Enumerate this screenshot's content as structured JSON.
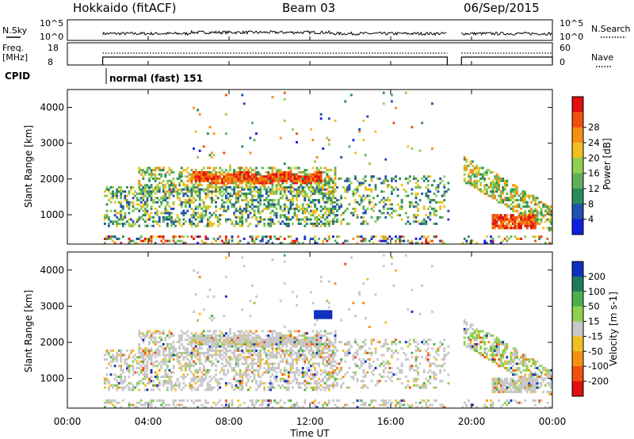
{
  "header": {
    "radar": "Hokkaido (fitACF)",
    "beam": "Beam 03",
    "date": "06/Sep/2015"
  },
  "status_panel": {
    "nsky_label": "N.Sky",
    "nsky_ticks": [
      "10^5",
      "10^0"
    ],
    "nsearch_label": "N.Search",
    "nsearch_ticks": [
      "10^5",
      "10^0"
    ],
    "freq_label": "Freq.",
    "freq_unit": "[MHz]",
    "freq_ticks": [
      "18",
      "8"
    ],
    "nave_label": "Nave",
    "nave_ticks": [
      "60",
      "0"
    ],
    "cpid_label": "CPID",
    "cpid_text": "normal (fast) 151"
  },
  "chart_data": [
    {
      "type": "heatmap",
      "name": "power",
      "ylabel": "Slant Range [km]",
      "yticks": [
        "1000",
        "2000",
        "3000",
        "4000"
      ],
      "ylim": [
        180,
        4500
      ],
      "xlim_hours": [
        0,
        24
      ],
      "colorbar": {
        "label": "Power [dB]",
        "ticks": [
          "4",
          "8",
          "12",
          "16",
          "20",
          "24",
          "28"
        ],
        "colors": [
          "#1020e0",
          "#2050b0",
          "#2a8a5a",
          "#5fae5a",
          "#90d050",
          "#f0c020",
          "#f59010",
          "#f05010",
          "#e01010"
        ]
      },
      "data_gaps_hours": [
        [
          0,
          1.75
        ],
        [
          18.8,
          19.5
        ]
      ],
      "features": [
        {
          "desc": "strong echo band",
          "hours": [
            6,
            12.5
          ],
          "range_km": [
            1850,
            2150
          ],
          "level_db": 26
        },
        {
          "desc": "moderate echoes",
          "hours": [
            1.8,
            13
          ],
          "range_km": [
            800,
            1700
          ],
          "level_db": 14
        },
        {
          "desc": "evening echoes",
          "hours": [
            19.5,
            24
          ],
          "range_km": [
            600,
            2200
          ],
          "level_db": 22
        }
      ]
    },
    {
      "type": "heatmap",
      "name": "velocity",
      "xlabel": "Time UT",
      "ylabel": "Slant Range [km]",
      "yticks": [
        "1000",
        "2000",
        "3000",
        "4000"
      ],
      "xticks": [
        "00:00",
        "04:00",
        "08:00",
        "12:00",
        "16:00",
        "20:00",
        "00:00"
      ],
      "ylim": [
        180,
        4500
      ],
      "xlim_hours": [
        0,
        24
      ],
      "colorbar": {
        "label": "Velocity [m s-1]",
        "ticks": [
          "200",
          "100",
          "50",
          "15",
          "-15",
          "-50",
          "-100",
          "-200"
        ],
        "colors": [
          "#1030c0",
          "#207a60",
          "#4caf4c",
          "#90d050",
          "#c8c8c8",
          "#f0c020",
          "#f59010",
          "#f05010",
          "#e01010"
        ]
      },
      "features": [
        {
          "desc": "ground scatter band",
          "hours": [
            3.5,
            13
          ],
          "range_km": [
            1700,
            2300
          ],
          "class": "ground"
        },
        {
          "desc": "near-zero echoes",
          "hours": [
            1.8,
            13
          ],
          "range_km": [
            800,
            1600
          ],
          "class": "ground"
        },
        {
          "desc": "positive velocity patch",
          "hours": [
            12.2,
            13
          ],
          "range_km": [
            2650,
            2850
          ],
          "velocity_ms": 220
        }
      ]
    }
  ]
}
